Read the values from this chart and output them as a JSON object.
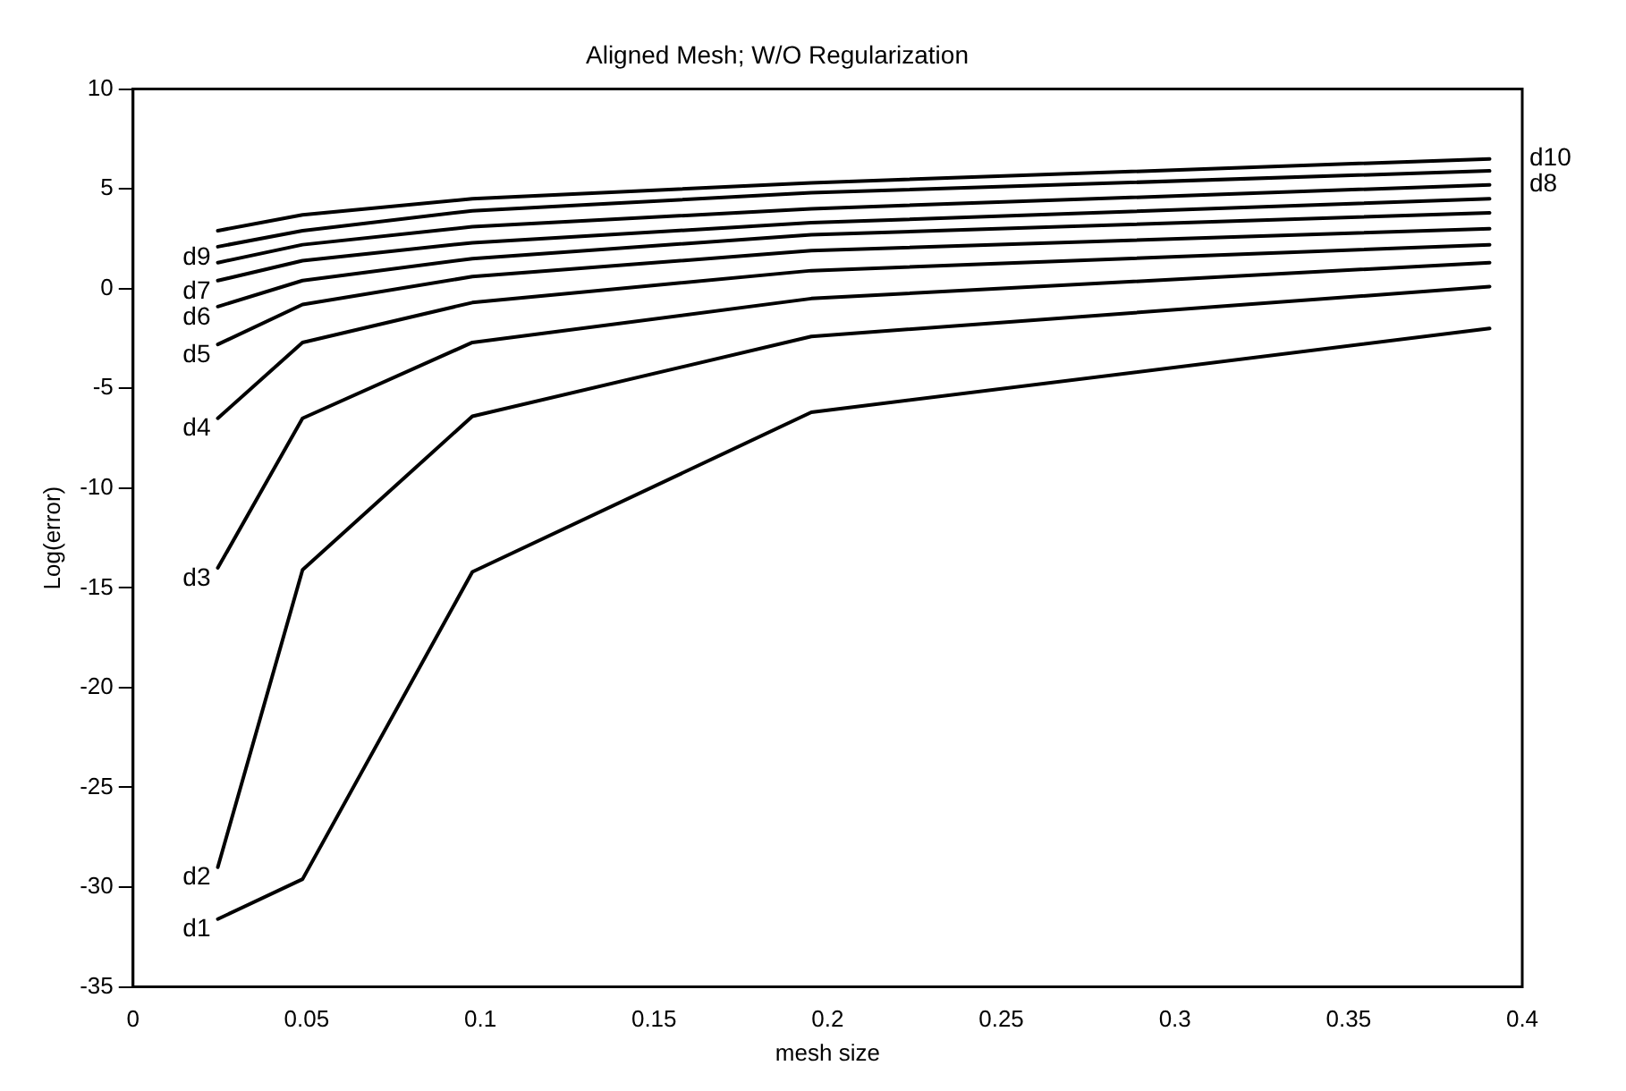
{
  "chart_data": {
    "type": "line",
    "title": "Aligned Mesh; W/O Regularization",
    "xlabel": "mesh size",
    "ylabel": "Log(error)",
    "x": [
      0.0244,
      0.0488,
      0.0977,
      0.1953,
      0.3906
    ],
    "xlim": [
      0,
      0.4
    ],
    "xticks": [
      0,
      0.05,
      0.1,
      0.15,
      0.2,
      0.25,
      0.3,
      0.35,
      0.4
    ],
    "ylim": [
      -35,
      10
    ],
    "yticks": [
      -35,
      -30,
      -25,
      -20,
      -15,
      -10,
      -5,
      0,
      5,
      10
    ],
    "grid": false,
    "legend": false,
    "marker": "none",
    "line_style": "solid",
    "series": [
      {
        "name": "d1",
        "color": "#000000",
        "values": [
          -31.6,
          -29.6,
          -14.2,
          -6.2,
          -2.0
        ]
      },
      {
        "name": "d2",
        "color": "#000000",
        "values": [
          -29.0,
          -14.1,
          -6.4,
          -2.4,
          0.1
        ]
      },
      {
        "name": "d3",
        "color": "#000000",
        "values": [
          -14.0,
          -6.5,
          -2.7,
          -0.5,
          1.3
        ]
      },
      {
        "name": "d4",
        "color": "#000000",
        "values": [
          -6.5,
          -2.7,
          -0.7,
          0.9,
          2.2
        ]
      },
      {
        "name": "d5",
        "color": "#000000",
        "values": [
          -2.8,
          -0.8,
          0.6,
          1.9,
          3.0
        ]
      },
      {
        "name": "d6",
        "color": "#000000",
        "values": [
          -0.9,
          0.4,
          1.5,
          2.7,
          3.8
        ]
      },
      {
        "name": "d7",
        "color": "#000000",
        "values": [
          0.4,
          1.4,
          2.3,
          3.3,
          4.5
        ]
      },
      {
        "name": "d8",
        "color": "#000000",
        "values": [
          1.3,
          2.2,
          3.1,
          4.0,
          5.2
        ]
      },
      {
        "name": "d9",
        "color": "#000000",
        "values": [
          2.1,
          2.9,
          3.9,
          4.8,
          5.9
        ]
      },
      {
        "name": "d10",
        "color": "#000000",
        "values": [
          2.9,
          3.7,
          4.5,
          5.3,
          6.5
        ]
      }
    ]
  }
}
